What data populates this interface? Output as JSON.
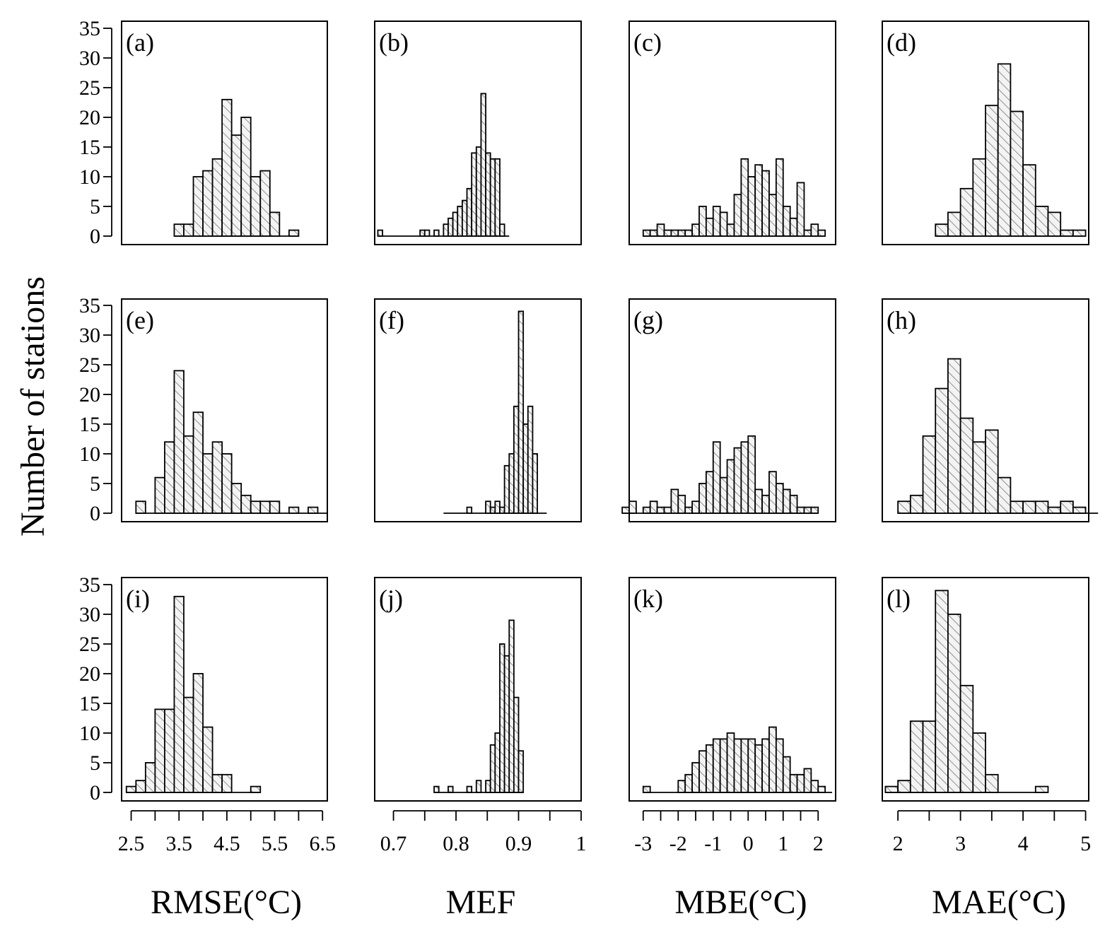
{
  "ylabel": "Number of stations",
  "colors": {
    "bar_fill": "#f3f3f3",
    "hatch": "#666666",
    "stroke": "#000000"
  },
  "columns": [
    {
      "xlabel": "RMSE(°C)",
      "x_ticks": [
        2.5,
        3.5,
        4.5,
        5.5,
        6.5
      ],
      "x_tick_labels": [
        "2.5",
        "3.5",
        "4.5",
        "5.5",
        "6.5"
      ],
      "xlim": [
        2.3,
        6.6
      ]
    },
    {
      "xlabel": "MEF",
      "x_ticks": [
        0.7,
        0.8,
        0.9,
        1.0
      ],
      "x_tick_labels": [
        "0.7",
        "0.8",
        "0.9",
        "1"
      ],
      "xlim": [
        0.67,
        1.0
      ]
    },
    {
      "xlabel": "MBE(°C)",
      "x_ticks": [
        -3,
        -2,
        -1,
        0,
        1,
        2
      ],
      "x_tick_labels": [
        "-3",
        "-2",
        "-1",
        "0",
        "1",
        "2"
      ],
      "xlim": [
        -3.4,
        2.5
      ]
    },
    {
      "xlabel": "MAE(°C)",
      "x_ticks": [
        2,
        3,
        4,
        5
      ],
      "x_tick_labels": [
        "2",
        "3",
        "4",
        "5"
      ],
      "xlim": [
        1.75,
        5.05
      ]
    }
  ],
  "chart_data": [
    {
      "type": "bar",
      "panel": "(a)",
      "metric": "RMSE(°C)",
      "bin_start": 3.4,
      "bin_width": 0.2,
      "counts": [
        2,
        2,
        10,
        11,
        13,
        23,
        17,
        20,
        10,
        11,
        4,
        0,
        1
      ],
      "ylim": [
        0,
        35
      ],
      "y_ticks": [
        0,
        5,
        10,
        15,
        20,
        25,
        30,
        35
      ]
    },
    {
      "type": "bar",
      "panel": "(b)",
      "metric": "MEF",
      "bin_start": 0.675,
      "bin_width": 0.0075,
      "counts": [
        1,
        0,
        0,
        0,
        0,
        0,
        0,
        0,
        0,
        1,
        1,
        0,
        1,
        0,
        2,
        3,
        4,
        5,
        6,
        8,
        14,
        15,
        24,
        14,
        13,
        13,
        2,
        0
      ],
      "ylim": [
        0,
        35
      ],
      "y_ticks": [
        0,
        5,
        10,
        15,
        20,
        25,
        30,
        35
      ]
    },
    {
      "type": "bar",
      "panel": "(c)",
      "metric": "MBE(°C)",
      "bin_start": -3.0,
      "bin_width": 0.2,
      "counts": [
        1,
        1,
        2,
        1,
        1,
        1,
        1,
        2,
        5,
        3,
        5,
        4,
        2,
        7,
        13,
        10,
        12,
        11,
        7,
        13,
        5,
        3,
        9,
        1,
        2,
        1
      ],
      "ylim": [
        0,
        35
      ],
      "y_ticks": [
        0,
        5,
        10,
        15,
        20,
        25,
        30,
        35
      ]
    },
    {
      "type": "bar",
      "panel": "(d)",
      "metric": "MAE(°C)",
      "bin_start": 2.6,
      "bin_width": 0.2,
      "counts": [
        2,
        4,
        8,
        13,
        22,
        29,
        21,
        12,
        5,
        4,
        1,
        1
      ],
      "ylim": [
        0,
        35
      ],
      "y_ticks": [
        0,
        5,
        10,
        15,
        20,
        25,
        30,
        35
      ]
    },
    {
      "type": "bar",
      "panel": "(e)",
      "metric": "RMSE(°C)",
      "bin_start": 2.6,
      "bin_width": 0.2,
      "counts": [
        2,
        0,
        6,
        12,
        24,
        13,
        17,
        10,
        12,
        10,
        5,
        3,
        2,
        2,
        2,
        0,
        1,
        0,
        1,
        0
      ],
      "ylim": [
        0,
        35
      ],
      "y_ticks": [
        0,
        5,
        10,
        15,
        20,
        25,
        30,
        35
      ]
    },
    {
      "type": "bar",
      "panel": "(f)",
      "metric": "MEF",
      "bin_start": 0.78,
      "bin_width": 0.0075,
      "counts": [
        0,
        0,
        0,
        0,
        0,
        1,
        0,
        0,
        0,
        2,
        1,
        2,
        1,
        8,
        10,
        18,
        34,
        15,
        18,
        10,
        0,
        0
      ],
      "ylim": [
        0,
        35
      ],
      "y_ticks": [
        0,
        5,
        10,
        15,
        20,
        25,
        30,
        35
      ]
    },
    {
      "type": "bar",
      "panel": "(g)",
      "metric": "MBE(°C)",
      "bin_start": -3.6,
      "bin_width": 0.2,
      "counts": [
        1,
        2,
        0,
        1,
        2,
        1,
        1,
        4,
        3,
        1,
        2,
        5,
        7,
        12,
        6,
        9,
        11,
        12,
        13,
        4,
        3,
        7,
        5,
        4,
        3,
        1,
        1,
        1
      ],
      "ylim": [
        0,
        35
      ],
      "y_ticks": [
        0,
        5,
        10,
        15,
        20,
        25,
        30,
        35
      ]
    },
    {
      "type": "bar",
      "panel": "(h)",
      "metric": "MAE(°C)",
      "bin_start": 2.0,
      "bin_width": 0.2,
      "counts": [
        2,
        3,
        13,
        21,
        26,
        16,
        12,
        14,
        6,
        2,
        2,
        2,
        1,
        2,
        1,
        0
      ],
      "ylim": [
        0,
        35
      ],
      "y_ticks": [
        0,
        5,
        10,
        15,
        20,
        25,
        30,
        35
      ]
    },
    {
      "type": "bar",
      "panel": "(i)",
      "metric": "RMSE(°C)",
      "bin_start": 2.4,
      "bin_width": 0.2,
      "counts": [
        1,
        2,
        5,
        14,
        14,
        33,
        16,
        20,
        11,
        3,
        3,
        0,
        0,
        1
      ],
      "ylim": [
        0,
        35
      ],
      "y_ticks": [
        0,
        5,
        10,
        15,
        20,
        25,
        30,
        35
      ]
    },
    {
      "type": "bar",
      "panel": "(j)",
      "metric": "MEF",
      "bin_start": 0.765,
      "bin_width": 0.0075,
      "counts": [
        1,
        0,
        0,
        1,
        0,
        0,
        0,
        1,
        0,
        2,
        0,
        2,
        8,
        10,
        25,
        23,
        29,
        16,
        7
      ],
      "ylim": [
        0,
        35
      ],
      "y_ticks": [
        0,
        5,
        10,
        15,
        20,
        25,
        30,
        35
      ]
    },
    {
      "type": "bar",
      "panel": "(k)",
      "metric": "MBE(°C)",
      "bin_start": -3.0,
      "bin_width": 0.2,
      "counts": [
        1,
        0,
        0,
        0,
        0,
        2,
        3,
        5,
        7,
        8,
        9,
        9,
        10,
        9,
        9,
        9,
        8,
        9,
        11,
        9,
        6,
        3,
        3,
        4,
        2,
        1,
        0
      ],
      "ylim": [
        0,
        35
      ],
      "y_ticks": [
        0,
        5,
        10,
        15,
        20,
        25,
        30,
        35
      ]
    },
    {
      "type": "bar",
      "panel": "(l)",
      "metric": "MAE(°C)",
      "bin_start": 1.8,
      "bin_width": 0.2,
      "counts": [
        1,
        2,
        12,
        12,
        34,
        30,
        18,
        10,
        3,
        0,
        0,
        0,
        1
      ],
      "ylim": [
        0,
        35
      ],
      "y_ticks": [
        0,
        5,
        10,
        15,
        20,
        25,
        30,
        35
      ]
    }
  ]
}
